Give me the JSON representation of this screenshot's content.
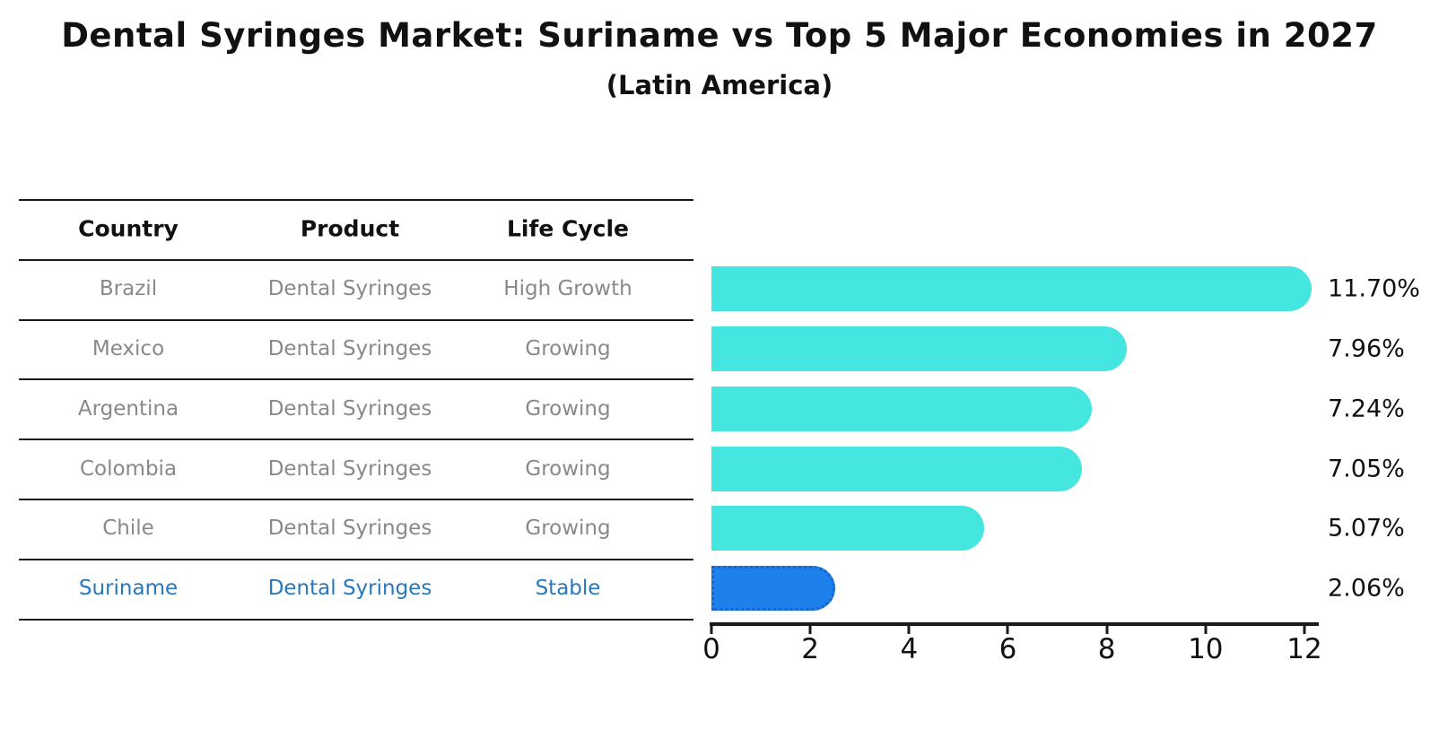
{
  "title": "Dental Syringes Market: Suriname vs Top 5 Major Economies in 2027",
  "subtitle": "(Latin America)",
  "table": {
    "headers": [
      "Country",
      "Product",
      "Life Cycle"
    ],
    "rows": [
      {
        "country": "Brazil",
        "product": "Dental Syringes",
        "life_cycle": "High Growth",
        "highlight": false
      },
      {
        "country": "Mexico",
        "product": "Dental Syringes",
        "life_cycle": "Growing",
        "highlight": false
      },
      {
        "country": "Argentina",
        "product": "Dental Syringes",
        "life_cycle": "Growing",
        "highlight": false
      },
      {
        "country": "Colombia",
        "product": "Dental Syringes",
        "life_cycle": "Growing",
        "highlight": false
      },
      {
        "country": "Chile",
        "product": "Dental Syringes",
        "life_cycle": "Growing",
        "highlight": false
      },
      {
        "country": "Suriname",
        "product": "Dental Syringes",
        "life_cycle": "Stable",
        "highlight": true
      }
    ]
  },
  "chart_data": {
    "type": "bar",
    "orientation": "horizontal",
    "categories": [
      "Brazil",
      "Mexico",
      "Argentina",
      "Colombia",
      "Chile",
      "Suriname"
    ],
    "values": [
      11.7,
      7.96,
      7.24,
      7.05,
      5.07,
      2.06
    ],
    "value_labels": [
      "11.70%",
      "7.96%",
      "7.24%",
      "7.05%",
      "5.07%",
      "2.06%"
    ],
    "xticks": [
      "0",
      "2",
      "4",
      "6",
      "8",
      "10",
      "12"
    ],
    "xlim": [
      0,
      12
    ],
    "grid": false,
    "legend": false,
    "bar_color": "#45e5e0",
    "highlight_bar_color": "#1e80eb",
    "highlight_border_color": "#1565cc",
    "highlight_text_color": "#2878be",
    "highlight_index": 5
  }
}
